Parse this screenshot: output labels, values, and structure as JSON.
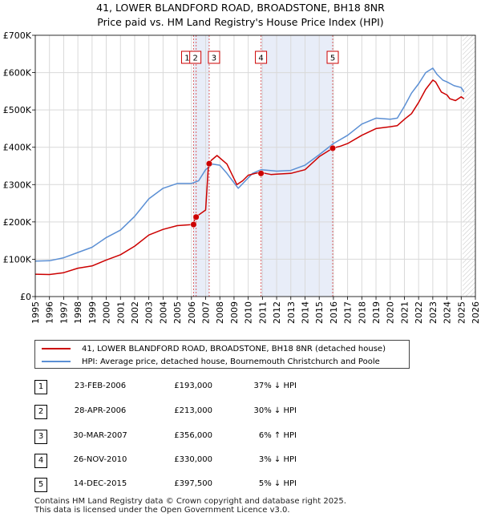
{
  "title": "41, LOWER BLANDFORD ROAD, BROADSTONE, BH18 8NR",
  "subtitle": "Price paid vs. HM Land Registry's House Price Index (HPI)",
  "chart_data": {
    "type": "line",
    "xlim": [
      1995,
      2026
    ],
    "ylim": [
      0,
      700000
    ],
    "y_ticks": [
      0,
      100000,
      200000,
      300000,
      400000,
      500000,
      600000,
      700000
    ],
    "y_tick_labels": [
      "£0",
      "£100K",
      "£200K",
      "£300K",
      "£400K",
      "£500K",
      "£600K",
      "£700K"
    ],
    "x_ticks": [
      1995,
      1996,
      1997,
      1998,
      1999,
      2000,
      2001,
      2002,
      2003,
      2004,
      2005,
      2006,
      2007,
      2008,
      2009,
      2010,
      2011,
      2012,
      2013,
      2014,
      2015,
      2016,
      2017,
      2018,
      2019,
      2020,
      2021,
      2022,
      2023,
      2024,
      2025,
      2026
    ],
    "grid": true,
    "future_hatch_from": 2025.1,
    "series": [
      {
        "name": "41, LOWER BLANDFORD ROAD, BROADSTONE, BH18 8NR (detached house)",
        "color": "#cc0000",
        "x": [
          1995.0,
          1996.0,
          1997.0,
          1998.0,
          1999.0,
          2000.0,
          2001.0,
          2002.0,
          2003.0,
          2004.0,
          2005.0,
          2006.1,
          2006.1,
          2006.3,
          2007.0,
          2007.2,
          2007.4,
          2007.8,
          2008.5,
          2009.2,
          2009.6,
          2010.0,
          2010.5,
          2010.9,
          2011.2,
          2011.6,
          2012.0,
          2013.0,
          2014.0,
          2015.0,
          2015.95,
          2016.5,
          2017.0,
          2018.0,
          2019.0,
          2020.0,
          2020.5,
          2021.0,
          2021.5,
          2022.0,
          2022.5,
          2023.0,
          2023.2,
          2023.6,
          2024.0,
          2024.2,
          2024.6,
          2025.0,
          2025.2
        ],
        "y": [
          60000,
          59000,
          64000,
          76000,
          82000,
          98000,
          112000,
          135000,
          165000,
          180000,
          190000,
          193000,
          193000,
          213000,
          232000,
          356000,
          365000,
          378000,
          355000,
          300000,
          310000,
          325000,
          330000,
          333000,
          330000,
          327000,
          328000,
          330000,
          340000,
          375000,
          397500,
          403000,
          410000,
          432000,
          450000,
          455000,
          458000,
          475000,
          490000,
          520000,
          555000,
          580000,
          575000,
          548000,
          540000,
          530000,
          525000,
          535000,
          530000
        ]
      },
      {
        "name": "HPI: Average price, detached house, Bournemouth Christchurch and Poole",
        "color": "#5b8fd4",
        "x": [
          1995.0,
          1996.0,
          1997.0,
          1998.0,
          1999.0,
          2000.0,
          2001.0,
          2002.0,
          2003.0,
          2004.0,
          2005.0,
          2006.0,
          2006.5,
          2007.0,
          2007.5,
          2008.0,
          2008.5,
          2009.0,
          2009.3,
          2009.8,
          2010.3,
          2010.9,
          2011.5,
          2012.0,
          2013.0,
          2014.0,
          2015.0,
          2016.0,
          2017.0,
          2018.0,
          2019.0,
          2020.0,
          2020.5,
          2021.0,
          2021.5,
          2022.0,
          2022.5,
          2023.0,
          2023.3,
          2023.7,
          2024.0,
          2024.5,
          2025.0,
          2025.2
        ],
        "y": [
          95000,
          96000,
          104000,
          118000,
          132000,
          158000,
          178000,
          215000,
          262000,
          290000,
          303000,
          303000,
          310000,
          340000,
          355000,
          352000,
          330000,
          305000,
          290000,
          310000,
          330000,
          340000,
          338000,
          336000,
          338000,
          352000,
          380000,
          410000,
          432000,
          462000,
          478000,
          475000,
          478000,
          510000,
          545000,
          570000,
          600000,
          612000,
          595000,
          580000,
          575000,
          565000,
          560000,
          548000
        ]
      }
    ],
    "markers": [
      {
        "label": "1",
        "x": 2006.15,
        "y": 193000
      },
      {
        "label": "2",
        "x": 2006.33,
        "y": 213000
      },
      {
        "label": "3",
        "x": 2007.25,
        "y": 356000
      },
      {
        "label": "4",
        "x": 2010.9,
        "y": 330000
      },
      {
        "label": "5",
        "x": 2015.95,
        "y": 397500
      }
    ],
    "shaded_ranges": [
      [
        2006.15,
        2007.25
      ],
      [
        2010.9,
        2015.95
      ]
    ]
  },
  "legend": {
    "property": "41, LOWER BLANDFORD ROAD, BROADSTONE, BH18 8NR (detached house)",
    "hpi": "HPI: Average price, detached house, Bournemouth Christchurch and Poole",
    "property_color": "#cc0000",
    "hpi_color": "#5b8fd4"
  },
  "transactions": [
    {
      "num": "1",
      "date": "23-FEB-2006",
      "price": "£193,000",
      "hpi": "37% ↓ HPI"
    },
    {
      "num": "2",
      "date": "28-APR-2006",
      "price": "£213,000",
      "hpi": "30% ↓ HPI"
    },
    {
      "num": "3",
      "date": "30-MAR-2007",
      "price": "£356,000",
      "hpi": "6% ↑ HPI"
    },
    {
      "num": "4",
      "date": "26-NOV-2010",
      "price": "£330,000",
      "hpi": "3% ↓ HPI"
    },
    {
      "num": "5",
      "date": "14-DEC-2015",
      "price": "£397,500",
      "hpi": "5% ↓ HPI"
    }
  ],
  "footer": {
    "line1": "Contains HM Land Registry data © Crown copyright and database right 2025.",
    "line2": "This data is licensed under the Open Government Licence v3.0."
  }
}
